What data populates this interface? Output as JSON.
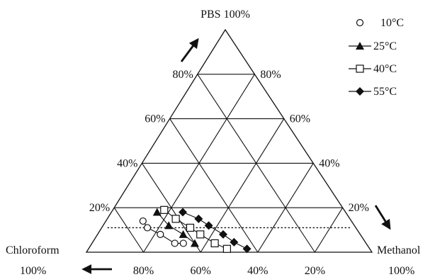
{
  "chart_data": {
    "type": "ternary-scatter",
    "title": "",
    "axes": {
      "top": {
        "label": "PBS 100%"
      },
      "left": {
        "label": "Chloroform",
        "sublabel": "100%"
      },
      "right": {
        "label": "Methanol",
        "sublabel": "100%"
      }
    },
    "left_edge_ticks": [
      "20%",
      "40%",
      "60%",
      "80%"
    ],
    "right_edge_ticks": [
      "80%",
      "60%",
      "40%",
      "20%"
    ],
    "bottom_edge_ticks": [
      "80%",
      "60%",
      "40%",
      "20%"
    ],
    "dotted_line_pbs": 0.11,
    "legend": {
      "placement": "top-right",
      "entries": [
        {
          "name": "10°C",
          "marker": "circle-open",
          "line": false
        },
        {
          "name": "25°C",
          "marker": "triangle-filled",
          "line": true
        },
        {
          "name": "40°C",
          "marker": "square-open",
          "line": true
        },
        {
          "name": "55°C",
          "marker": "diamond-filled",
          "line": true
        }
      ]
    },
    "series": [
      {
        "name": "10°C",
        "marker": "circle-open",
        "points": [
          [
            0.73,
            0.14
          ],
          [
            0.73,
            0.11
          ],
          [
            0.7,
            0.08
          ],
          [
            0.67,
            0.04
          ],
          [
            0.64,
            0.04
          ]
        ]
      },
      {
        "name": "25°C",
        "marker": "triangle-filled",
        "points": [
          [
            0.66,
            0.18
          ],
          [
            0.65,
            0.12
          ],
          [
            0.62,
            0.08
          ],
          [
            0.6,
            0.04
          ]
        ]
      },
      {
        "name": "40°C",
        "marker": "square-open",
        "points": [
          [
            0.63,
            0.19
          ],
          [
            0.61,
            0.15
          ],
          [
            0.58,
            0.11
          ],
          [
            0.56,
            0.08
          ],
          [
            0.53,
            0.04
          ],
          [
            0.5,
            0.015
          ]
        ]
      },
      {
        "name": "55°C",
        "marker": "diamond-filled",
        "points": [
          [
            0.57,
            0.18
          ],
          [
            0.53,
            0.15
          ],
          [
            0.51,
            0.12
          ],
          [
            0.48,
            0.08
          ],
          [
            0.46,
            0.045
          ],
          [
            0.43,
            0.015
          ]
        ]
      }
    ]
  }
}
